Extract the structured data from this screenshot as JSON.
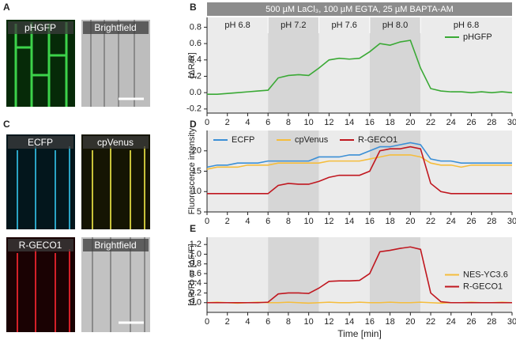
{
  "panel_labels": [
    "A",
    "B",
    "C",
    "D",
    "E"
  ],
  "images": {
    "A": [
      "pHGFP",
      "Brightfield"
    ],
    "C": [
      "ECFP",
      "cpVenus",
      "R-GECO1",
      "Brightfield"
    ]
  },
  "condition": "500 µM LaCl₃, 100 µM EGTA, 25 µM BAPTA-AM",
  "ph_regions": [
    {
      "label": "pH 6.8",
      "start": 0,
      "end": 6,
      "shade": "#ebebeb"
    },
    {
      "label": "pH 7.2",
      "start": 6,
      "end": 11,
      "shade": "#d6d6d6"
    },
    {
      "label": "pH 7.6",
      "start": 11,
      "end": 16,
      "shade": "#ebebeb"
    },
    {
      "label": "pH 8.0",
      "start": 16,
      "end": 21,
      "shade": "#d6d6d6"
    },
    {
      "label": "pH 6.8",
      "start": 21,
      "end": 30,
      "shade": "#ebebeb"
    }
  ],
  "chart_data": [
    {
      "type": "line",
      "ylabel": "[ΔR/R]",
      "legend": "right",
      "x": [
        0,
        1,
        2,
        3,
        4,
        5,
        6,
        7,
        8,
        9,
        10,
        11,
        12,
        13,
        14,
        15,
        16,
        17,
        18,
        19,
        20,
        21,
        22,
        23,
        24,
        25,
        26,
        27,
        28,
        29,
        30
      ],
      "xlim": [
        0,
        30
      ],
      "xticks": [
        0,
        2,
        4,
        6,
        8,
        10,
        12,
        14,
        16,
        18,
        20,
        22,
        24,
        26,
        28,
        30
      ],
      "ylim": [
        -0.25,
        0.92
      ],
      "yticks": [
        -0.2,
        {
          "value": 0,
          "label": "0.0"
        },
        0.2,
        0.4,
        0.6,
        0.8
      ],
      "series": [
        {
          "name": "pHGFP",
          "color": "#3aa935",
          "values": [
            -0.02,
            -0.02,
            -0.01,
            0,
            0.01,
            0.02,
            0.03,
            0.18,
            0.21,
            0.22,
            0.21,
            0.3,
            0.4,
            0.42,
            0.41,
            0.42,
            0.5,
            0.6,
            0.58,
            0.62,
            0.64,
            0.3,
            0.05,
            0.02,
            0.01,
            0.01,
            0,
            0.01,
            0,
            0.01,
            0
          ]
        }
      ]
    },
    {
      "type": "line",
      "ylabel": "Fluorescence intensity",
      "legend": "top-left",
      "x": [
        0,
        1,
        2,
        3,
        4,
        5,
        6,
        7,
        8,
        9,
        10,
        11,
        12,
        13,
        14,
        15,
        16,
        17,
        18,
        19,
        20,
        21,
        22,
        23,
        24,
        25,
        26,
        27,
        28,
        29,
        30
      ],
      "xlim": [
        0,
        30
      ],
      "xticks": [
        0,
        2,
        4,
        6,
        8,
        10,
        12,
        14,
        16,
        18,
        20,
        22,
        24,
        26,
        28,
        30
      ],
      "ylim": [
        5,
        25
      ],
      "yticks": [
        5,
        10,
        15,
        20
      ],
      "series": [
        {
          "name": "ECFP",
          "color": "#3b8fd6",
          "values": [
            16,
            16.5,
            16.5,
            17,
            17,
            17,
            17.5,
            17.5,
            17.5,
            17.5,
            17.5,
            18.5,
            18.5,
            18.5,
            19,
            19,
            20,
            21,
            21,
            21.5,
            22,
            21.5,
            18,
            17.5,
            17.5,
            17,
            17,
            17,
            17,
            17,
            17
          ]
        },
        {
          "name": "cpVenus",
          "color": "#f5bd3c",
          "values": [
            15.5,
            16,
            16,
            16,
            16.5,
            16.5,
            16.5,
            17,
            17,
            17,
            17,
            17,
            17.5,
            17.5,
            17.5,
            17.5,
            18,
            18.5,
            19,
            19,
            19,
            18.5,
            17,
            16.5,
            16.5,
            16,
            16.5,
            16.5,
            16.5,
            16.5,
            16.5
          ]
        },
        {
          "name": "R-GECO1",
          "color": "#c0171f",
          "values": [
            9.5,
            9.5,
            9.5,
            9.5,
            9.5,
            9.5,
            9.5,
            11.5,
            12,
            11.8,
            11.8,
            12.5,
            13.5,
            14,
            14,
            14,
            15,
            20,
            20.5,
            20.5,
            21,
            20.5,
            12,
            10,
            9.5,
            9.5,
            9.5,
            9.5,
            9.5,
            9.5,
            9.5
          ]
        }
      ]
    },
    {
      "type": "line",
      "ylabel": "[ΔR/R] or [ΔF/F]",
      "xlabel": "Time [min]",
      "legend": "right",
      "x": [
        0,
        1,
        2,
        3,
        4,
        5,
        6,
        7,
        8,
        9,
        10,
        11,
        12,
        13,
        14,
        15,
        16,
        17,
        18,
        19,
        20,
        21,
        22,
        23,
        24,
        25,
        26,
        27,
        28,
        29,
        30
      ],
      "xlim": [
        0,
        30
      ],
      "xticks": [
        0,
        2,
        4,
        6,
        8,
        10,
        12,
        14,
        16,
        18,
        20,
        22,
        24,
        26,
        28,
        30
      ],
      "ylim": [
        -0.2,
        1.35
      ],
      "yticks": [
        {
          "value": 0,
          "label": "0.0"
        },
        0.2,
        0.4,
        0.6,
        0.8,
        {
          "value": 1,
          "label": "1.0"
        },
        1.2
      ],
      "series": [
        {
          "name": "NES-YC3.6",
          "color": "#f5bd3c",
          "values": [
            0,
            0.01,
            0,
            -0.01,
            0,
            0.01,
            0,
            0,
            0.01,
            0,
            -0.01,
            0,
            0.01,
            0,
            0,
            0.01,
            0,
            0,
            0.01,
            0,
            0,
            0.01,
            0,
            -0.01,
            0,
            0,
            0.01,
            0,
            0,
            0.01,
            0
          ]
        },
        {
          "name": "R-GECO1",
          "color": "#c0171f",
          "values": [
            0,
            0,
            0,
            0,
            0,
            0,
            0.01,
            0.18,
            0.2,
            0.2,
            0.19,
            0.3,
            0.44,
            0.45,
            0.45,
            0.46,
            0.6,
            1.05,
            1.08,
            1.12,
            1.15,
            1.1,
            0.2,
            0.02,
            0,
            0,
            0,
            0,
            0,
            0,
            0
          ]
        }
      ]
    }
  ]
}
